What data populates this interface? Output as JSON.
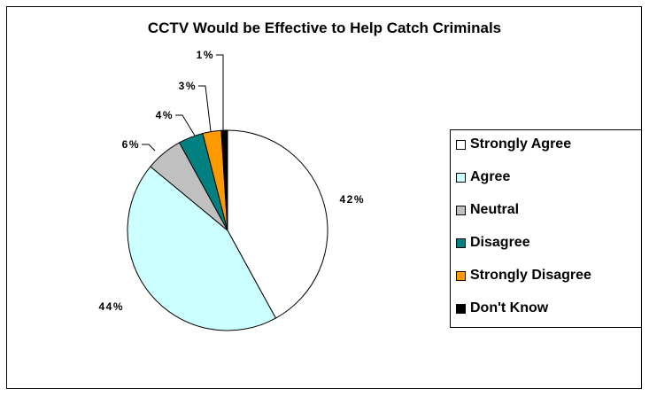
{
  "chart_data": {
    "type": "pie",
    "title": "CCTV Would be Effective to Help Catch Criminals",
    "categories": [
      "Strongly Agree",
      "Agree",
      "Neutral",
      "Disagree",
      "Strongly Disagree",
      "Don't Know"
    ],
    "values": [
      42,
      44,
      6,
      4,
      3,
      1
    ],
    "labels": [
      "42%",
      "44%",
      "6%",
      "4%",
      "3%",
      "1%"
    ],
    "colors": [
      "#ffffff",
      "#ccffff",
      "#c0c0c0",
      "#008080",
      "#ff9900",
      "#000000"
    ],
    "legend": "right",
    "start": "12 o'clock",
    "direction": "clockwise"
  }
}
